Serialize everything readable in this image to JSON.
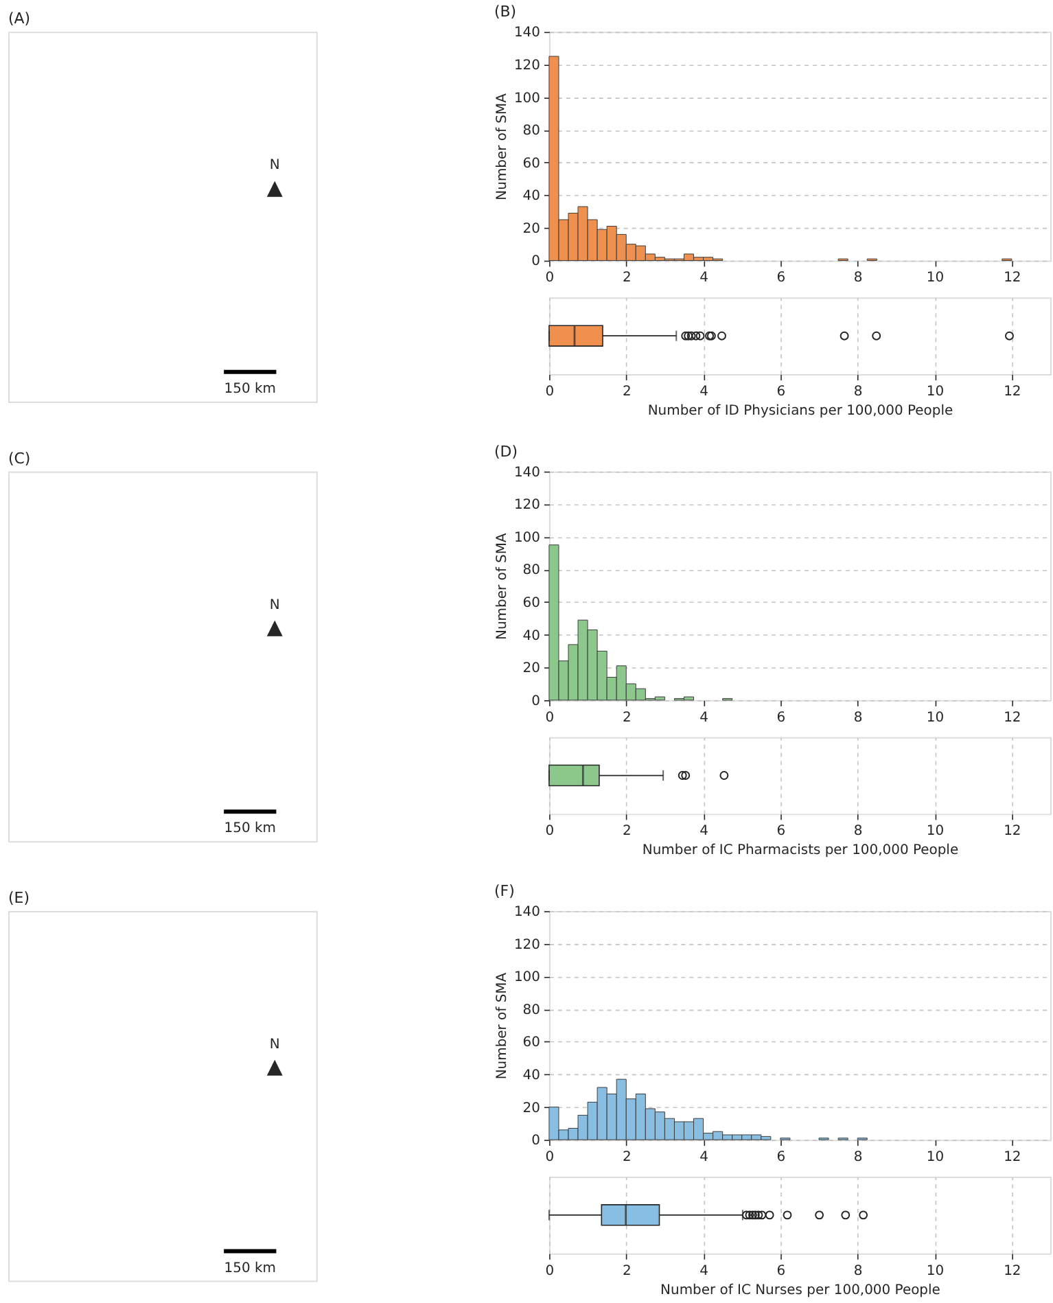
{
  "chart_data": [
    {
      "type": "other",
      "title": "(A)",
      "annotations": [
        "N",
        "▲",
        "150 km"
      ]
    },
    {
      "type": "histogram",
      "title": "(B)",
      "ylabel": "Number of SMA",
      "bins": [
        0,
        0.25,
        0.5,
        0.75,
        1,
        1.25,
        1.5,
        1.75,
        2,
        2.25,
        2.5,
        2.75,
        3,
        3.25,
        3.5,
        3.75,
        4,
        4.25,
        4.5,
        4.75,
        5,
        5.25,
        5.5,
        5.75,
        6,
        6.25,
        6.5,
        6.75,
        7,
        7.25,
        7.5,
        7.75,
        8,
        8.25,
        8.5,
        8.75,
        9,
        9.25,
        9.5,
        9.75,
        10,
        10.25,
        10.5,
        10.75,
        11,
        11.25,
        11.5,
        11.75,
        12
      ],
      "values": [
        125,
        25,
        29,
        33,
        25,
        19,
        21,
        16,
        10,
        9,
        4,
        2,
        1,
        1,
        4,
        2,
        2,
        1,
        0,
        0,
        0,
        0,
        0,
        0,
        0,
        0,
        0,
        0,
        0,
        0,
        1,
        0,
        0,
        1,
        0,
        0,
        0,
        0,
        0,
        0,
        0,
        0,
        0,
        0,
        0,
        0,
        0,
        1
      ],
      "color": "#f0904f",
      "xlim": [
        0,
        13
      ],
      "ylim": [
        0,
        140
      ],
      "xticks": [
        0,
        2,
        4,
        6,
        8,
        10,
        12
      ],
      "yticks": [
        0,
        20,
        40,
        60,
        80,
        100,
        120,
        140
      ],
      "grid": "y"
    },
    {
      "type": "box",
      "orientation": "horizontal",
      "categories": [
        null
      ],
      "boxes": [
        {
          "low": 0,
          "q1": 0,
          "median": 0.66,
          "q3": 1.39,
          "high": 3.3,
          "outliers": [
            3.54,
            3.61,
            3.69,
            3.81,
            3.92,
            4.16,
            4.21,
            4.48,
            7.66,
            8.49,
            11.94
          ]
        }
      ],
      "color": "#f0904f",
      "xlabel": "Number of ID Physicians per 100,000 People",
      "xlim": [
        0,
        13
      ],
      "xticks": [
        0,
        2,
        4,
        6,
        8,
        10,
        12
      ],
      "grid": "x",
      "tick_labels": "x"
    },
    {
      "type": "other",
      "title": "(C)",
      "annotations": [
        "N",
        "▲",
        "150 km"
      ]
    },
    {
      "type": "histogram",
      "title": "(D)",
      "ylabel": "Number of SMA",
      "bins": [
        0,
        0.25,
        0.5,
        0.75,
        1,
        1.25,
        1.5,
        1.75,
        2,
        2.25,
        2.5,
        2.75,
        3,
        3.25,
        3.5,
        3.75,
        4,
        4.25,
        4.5,
        4.75
      ],
      "values": [
        95,
        24,
        34,
        49,
        43,
        30,
        14,
        21,
        10,
        7,
        1,
        2,
        0,
        1,
        2,
        0,
        0,
        0,
        1
      ],
      "color": "#8cc88c",
      "xlim": [
        0,
        13
      ],
      "ylim": [
        0,
        140
      ],
      "xticks": [
        0,
        2,
        4,
        6,
        8,
        10,
        12
      ],
      "yticks": [
        0,
        20,
        40,
        60,
        80,
        100,
        120,
        140
      ],
      "grid": "y"
    },
    {
      "type": "box",
      "orientation": "horizontal",
      "categories": [
        null
      ],
      "boxes": [
        {
          "low": 0,
          "q1": 0,
          "median": 0.88,
          "q3": 1.3,
          "high": 2.96,
          "outliers": [
            3.46,
            3.54,
            4.54
          ]
        }
      ],
      "color": "#8cc88c",
      "xlabel": "Number of IC Pharmacists per 100,000 People",
      "xlim": [
        0,
        13
      ],
      "xticks": [
        0,
        2,
        4,
        6,
        8,
        10,
        12
      ],
      "grid": "x",
      "tick_labels": "x"
    },
    {
      "type": "other",
      "title": "(E)",
      "annotations": [
        "N",
        "▲",
        "150 km"
      ]
    },
    {
      "type": "histogram",
      "title": "(F)",
      "ylabel": "Number of SMA",
      "bins": [
        0,
        0.25,
        0.5,
        0.75,
        1,
        1.25,
        1.5,
        1.75,
        2,
        2.25,
        2.5,
        2.75,
        3,
        3.25,
        3.5,
        3.75,
        4,
        4.25,
        4.5,
        4.75,
        5,
        5.25,
        5.5,
        5.75,
        6,
        6.25,
        6.5,
        6.75,
        7,
        7.25,
        7.5,
        7.75,
        8,
        8.25
      ],
      "values": [
        20,
        6,
        7,
        15,
        23,
        32,
        28,
        37,
        25,
        28,
        19,
        17,
        13,
        11,
        11,
        13,
        4,
        5,
        3,
        3,
        3,
        3,
        2,
        0,
        1,
        0,
        0,
        0,
        1,
        0,
        1,
        0,
        1
      ],
      "color": "#88bee1",
      "xlim": [
        0,
        13
      ],
      "ylim": [
        0,
        140
      ],
      "xticks": [
        0,
        2,
        4,
        6,
        8,
        10,
        12
      ],
      "yticks": [
        0,
        20,
        40,
        60,
        80,
        100,
        120,
        140
      ],
      "grid": "y"
    },
    {
      "type": "box",
      "orientation": "horizontal",
      "categories": [
        null
      ],
      "boxes": [
        {
          "low": 0,
          "q1": 1.36,
          "median": 1.99,
          "q3": 2.86,
          "high": 5.02,
          "outliers": [
            5.12,
            5.2,
            5.28,
            5.35,
            5.43,
            5.52,
            5.72,
            6.18,
            7.01,
            7.69,
            8.15
          ]
        }
      ],
      "color": "#88bee1",
      "xlabel": "Number of IC Nurses per 100,000 People",
      "xlim": [
        0,
        13
      ],
      "xticks": [
        0,
        2,
        4,
        6,
        8,
        10,
        12
      ],
      "grid": "x",
      "tick_labels": "x"
    }
  ]
}
